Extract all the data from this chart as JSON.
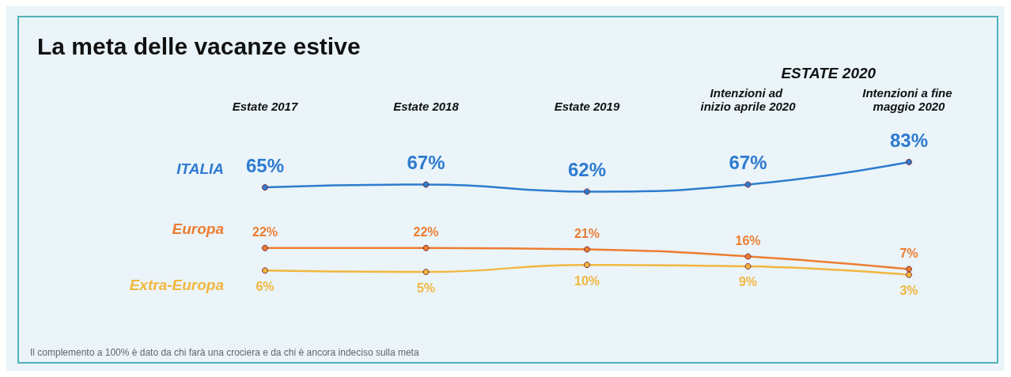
{
  "chart_data": {
    "type": "line",
    "title": "La meta delle vacanze estive",
    "categories": [
      "Estate 2017",
      "Estate 2018",
      "Estate 2019",
      "Intenzioni ad inizio aprile 2020",
      "Intenzioni a fine maggio 2020"
    ],
    "series": [
      {
        "name": "ITALIA",
        "color": "#2e7bcf",
        "values": [
          65,
          67,
          62,
          67,
          83
        ],
        "value_labels": [
          "65%",
          "67%",
          "62%",
          "67%",
          "83%"
        ]
      },
      {
        "name": "Europa",
        "color": "#ed7d31",
        "values": [
          22,
          22,
          21,
          16,
          7
        ],
        "value_labels": [
          "22%",
          "22%",
          "21%",
          "16%",
          "7%"
        ]
      },
      {
        "name": "Extra-Europa",
        "color": "#f2b73f",
        "values": [
          6,
          5,
          10,
          9,
          3
        ],
        "value_labels": [
          "6%",
          "5%",
          "10%",
          "9%",
          "3%"
        ]
      }
    ],
    "legend": false,
    "grid": false,
    "marker": "circle",
    "line_style": "solid",
    "annotations": [
      "ESTATE 2020",
      "Il complemento a 100% è dato da chi farà una crociera e da chi è ancora indeciso sulla meta"
    ]
  }
}
